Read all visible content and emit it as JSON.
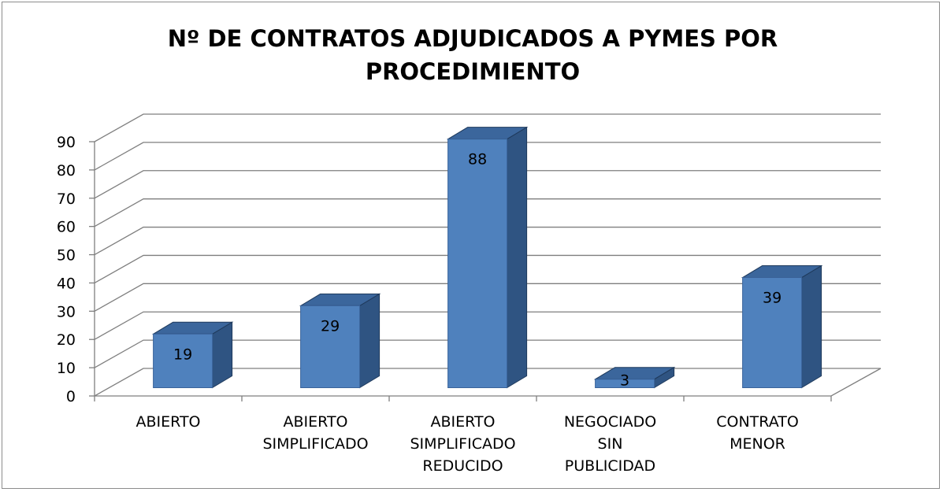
{
  "chart_data": {
    "type": "bar3d",
    "title": "Nº DE CONTRATOS ADJUDICADOS A PYMES POR PROCEDIMIENTO",
    "categories": [
      "ABIERTO",
      "ABIERTO SIMPLIFICADO",
      "ABIERTO SIMPLIFICADO REDUCIDO",
      "NEGOCIADO SIN PUBLICIDAD",
      "CONTRATO MENOR"
    ],
    "values": [
      19,
      29,
      88,
      3,
      39
    ],
    "color": "#4f81bd",
    "ylim": [
      0,
      90
    ],
    "yticks": [
      0,
      10,
      20,
      30,
      40,
      50,
      60,
      70,
      80,
      90
    ],
    "grid": true
  }
}
